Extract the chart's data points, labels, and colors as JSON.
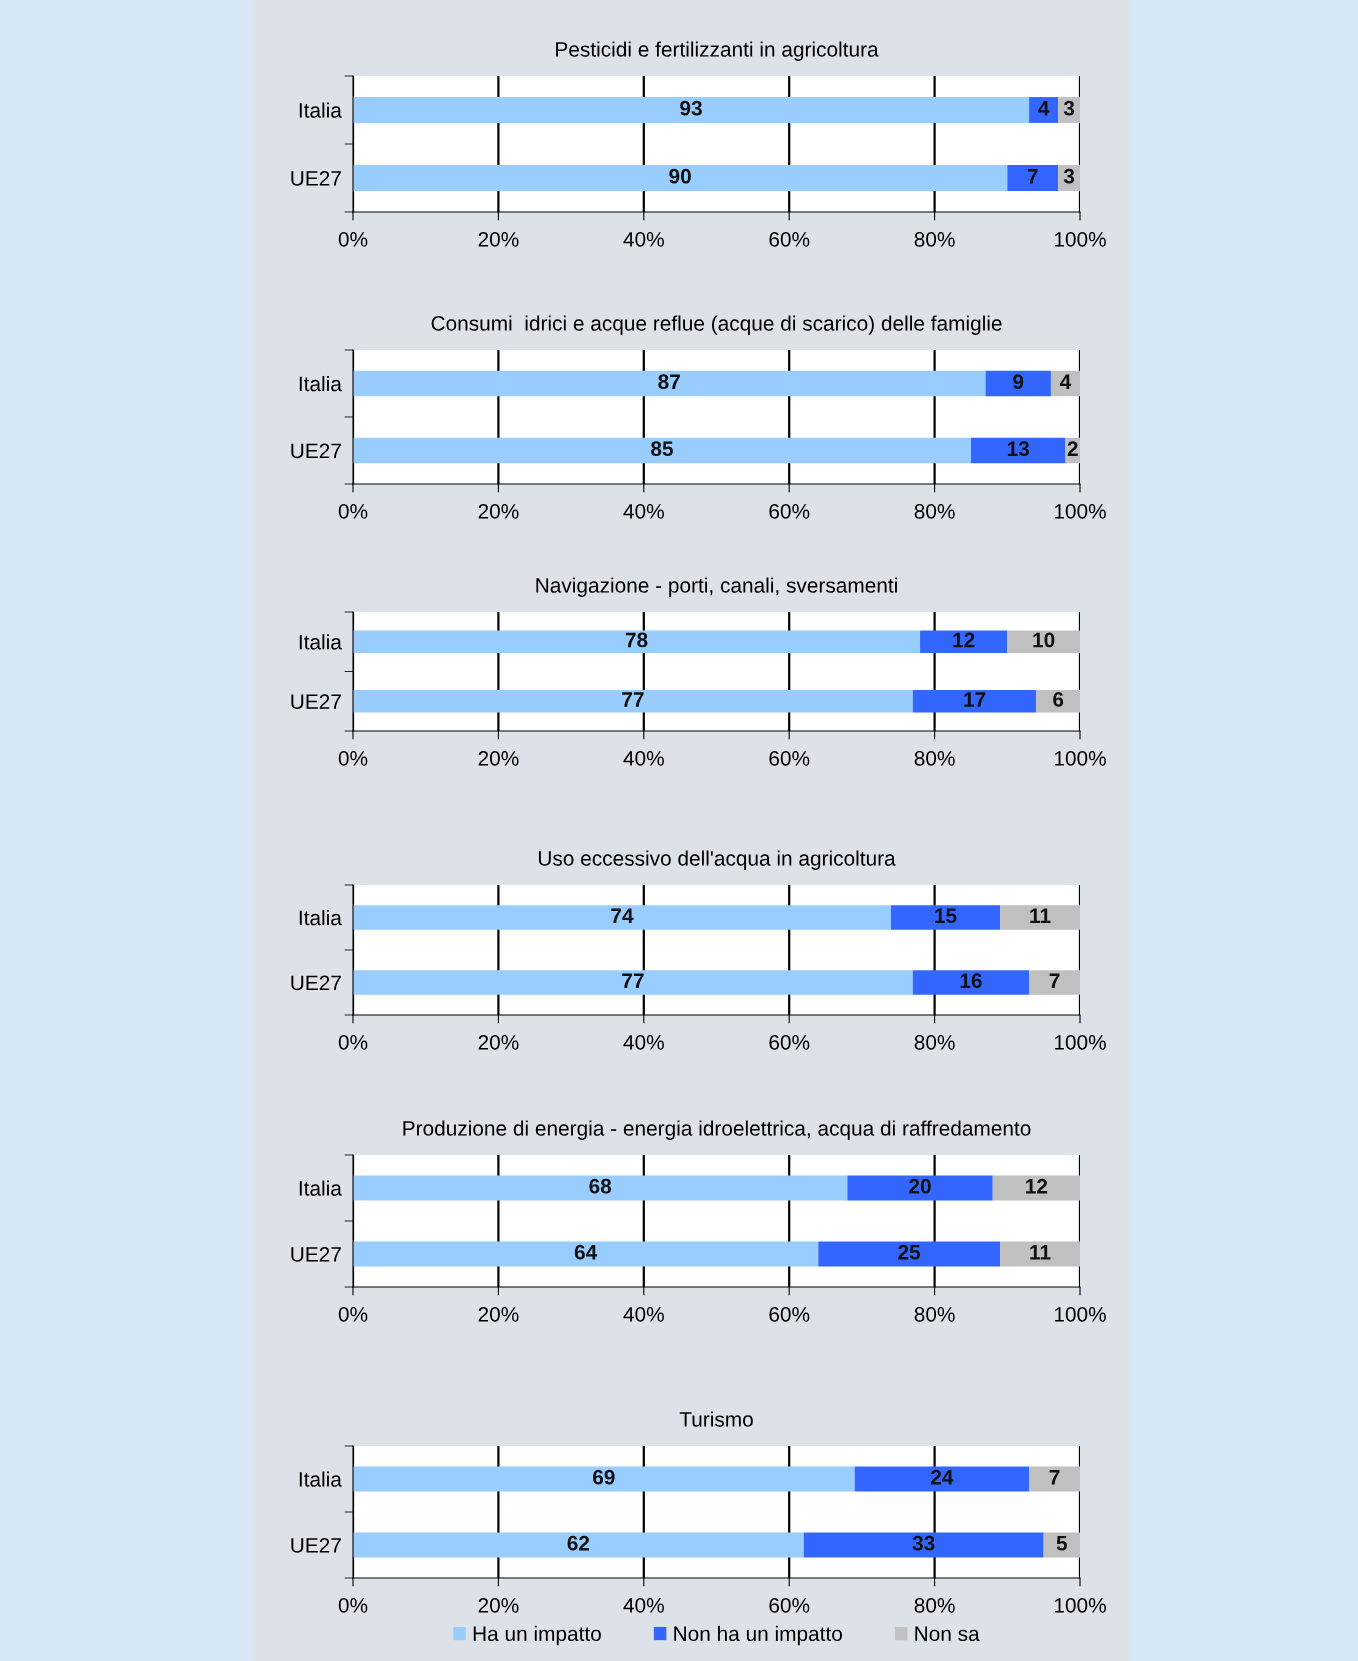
{
  "chart_data": [
    {
      "type": "bar",
      "orientation": "horizontal",
      "stacked": true,
      "title": "Pesticidi e fertilizzanti in agricoltura",
      "categories": [
        "Italia",
        "UE27"
      ],
      "series": [
        {
          "color": "#99ccff",
          "values": [
            93,
            90
          ]
        },
        {
          "color": "#3366ff",
          "values": [
            4,
            7
          ]
        },
        {
          "color": "#c0c0c0",
          "values": [
            3,
            3
          ]
        }
      ],
      "xlim": [
        0,
        100
      ],
      "xticks": [
        {
          "value": 0,
          "label": "0%"
        },
        {
          "value": 20,
          "label": "20%"
        },
        {
          "value": 40,
          "label": "40%"
        },
        {
          "value": 60,
          "label": "60%"
        },
        {
          "value": 80,
          "label": "80%"
        },
        {
          "value": 100,
          "label": "100%"
        }
      ],
      "grid": "x",
      "data_labels": true
    },
    {
      "type": "bar",
      "orientation": "horizontal",
      "stacked": true,
      "title": "Consumi  idrici e acque reflue (acque di scarico) delle famiglie",
      "categories": [
        "Italia",
        "UE27"
      ],
      "series": [
        {
          "color": "#99ccff",
          "values": [
            87,
            85
          ]
        },
        {
          "color": "#3366ff",
          "values": [
            9,
            13
          ]
        },
        {
          "color": "#c0c0c0",
          "values": [
            4,
            2
          ]
        }
      ],
      "xlim": [
        0,
        100
      ],
      "xticks": [
        {
          "value": 0,
          "label": "0%"
        },
        {
          "value": 20,
          "label": "20%"
        },
        {
          "value": 40,
          "label": "40%"
        },
        {
          "value": 60,
          "label": "60%"
        },
        {
          "value": 80,
          "label": "80%"
        },
        {
          "value": 100,
          "label": "100%"
        }
      ],
      "grid": "x",
      "data_labels": true
    },
    {
      "type": "bar",
      "orientation": "horizontal",
      "stacked": true,
      "title": "Navigazione - porti, canali, sversamenti",
      "categories": [
        "Italia",
        "UE27"
      ],
      "series": [
        {
          "color": "#99ccff",
          "values": [
            78,
            77
          ]
        },
        {
          "color": "#3366ff",
          "values": [
            12,
            17
          ]
        },
        {
          "color": "#c0c0c0",
          "values": [
            10,
            6
          ]
        }
      ],
      "xlim": [
        0,
        100
      ],
      "xticks": [
        {
          "value": 0,
          "label": "0%"
        },
        {
          "value": 20,
          "label": "20%"
        },
        {
          "value": 40,
          "label": "40%"
        },
        {
          "value": 60,
          "label": "60%"
        },
        {
          "value": 80,
          "label": "80%"
        },
        {
          "value": 100,
          "label": "100%"
        }
      ],
      "grid": "x",
      "data_labels": true
    },
    {
      "type": "bar",
      "orientation": "horizontal",
      "stacked": true,
      "title": "Uso eccessivo dell'acqua in agricoltura",
      "categories": [
        "Italia",
        "UE27"
      ],
      "series": [
        {
          "color": "#99ccff",
          "values": [
            74,
            77
          ]
        },
        {
          "color": "#3366ff",
          "values": [
            15,
            16
          ]
        },
        {
          "color": "#c0c0c0",
          "values": [
            11,
            7
          ]
        }
      ],
      "xlim": [
        0,
        100
      ],
      "xticks": [
        {
          "value": 0,
          "label": "0%"
        },
        {
          "value": 20,
          "label": "20%"
        },
        {
          "value": 40,
          "label": "40%"
        },
        {
          "value": 60,
          "label": "60%"
        },
        {
          "value": 80,
          "label": "80%"
        },
        {
          "value": 100,
          "label": "100%"
        }
      ],
      "grid": "x",
      "data_labels": true
    },
    {
      "type": "bar",
      "orientation": "horizontal",
      "stacked": true,
      "title": "Produzione di energia - energia idroelettrica, acqua di raffredamento",
      "categories": [
        "Italia",
        "UE27"
      ],
      "series": [
        {
          "color": "#99ccff",
          "values": [
            68,
            64
          ]
        },
        {
          "color": "#3366ff",
          "values": [
            20,
            25
          ]
        },
        {
          "color": "#c0c0c0",
          "values": [
            12,
            11
          ]
        }
      ],
      "xlim": [
        0,
        100
      ],
      "xticks": [
        {
          "value": 0,
          "label": "0%"
        },
        {
          "value": 20,
          "label": "20%"
        },
        {
          "value": 40,
          "label": "40%"
        },
        {
          "value": 60,
          "label": "60%"
        },
        {
          "value": 80,
          "label": "80%"
        },
        {
          "value": 100,
          "label": "100%"
        }
      ],
      "grid": "x",
      "data_labels": true
    },
    {
      "type": "bar",
      "orientation": "horizontal",
      "stacked": true,
      "title": "Turismo",
      "categories": [
        "Italia",
        "UE27"
      ],
      "series": [
        {
          "name": "Ha un impatto",
          "color": "#99ccff",
          "values": [
            69,
            62
          ]
        },
        {
          "name": "Non ha un impatto",
          "color": "#3366ff",
          "values": [
            24,
            33
          ]
        },
        {
          "name": "Non sa",
          "color": "#c0c0c0",
          "values": [
            7,
            5
          ]
        }
      ],
      "xlim": [
        0,
        100
      ],
      "xticks": [
        {
          "value": 0,
          "label": "0%"
        },
        {
          "value": 20,
          "label": "20%"
        },
        {
          "value": 40,
          "label": "40%"
        },
        {
          "value": 60,
          "label": "60%"
        },
        {
          "value": 80,
          "label": "80%"
        },
        {
          "value": 100,
          "label": "100%"
        }
      ],
      "grid": "x",
      "data_labels": true,
      "legend": "bottom"
    }
  ]
}
